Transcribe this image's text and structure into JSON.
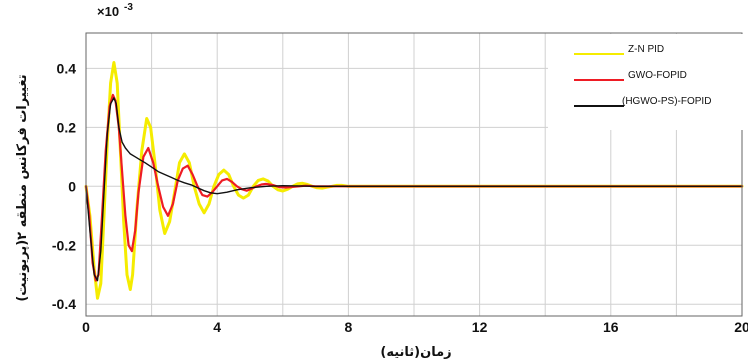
{
  "chart_data": {
    "type": "line",
    "ylabel": "تغییرات فرکانس منطقه ۲(پریونیت)",
    "xlabel": "زمان(ثانیه)",
    "y_multiplier": "×10",
    "y_exponent": "-3",
    "xlim": [
      0,
      20
    ],
    "ylim": [
      -0.44,
      0.52
    ],
    "xticks": [
      0,
      4,
      8,
      12,
      16,
      20
    ],
    "xtick_labels": [
      "0",
      "4",
      "8",
      "12",
      "16",
      "20"
    ],
    "yticks": [
      -0.4,
      -0.2,
      0,
      0.2,
      0.4
    ],
    "ytick_labels": [
      "-0.4",
      "-0.2",
      "0",
      "0.2",
      "0.4"
    ],
    "grid": true,
    "legend_position": "top-right",
    "series": [
      {
        "name": "Z-N PID",
        "color": "#f5ec00",
        "x": [
          0,
          0.12,
          0.25,
          0.35,
          0.45,
          0.55,
          0.65,
          0.75,
          0.85,
          0.95,
          1.05,
          1.15,
          1.25,
          1.35,
          1.42,
          1.55,
          1.7,
          1.85,
          1.97,
          2.1,
          2.25,
          2.4,
          2.55,
          2.7,
          2.85,
          3.0,
          3.15,
          3.3,
          3.45,
          3.6,
          3.75,
          3.9,
          4.05,
          4.2,
          4.35,
          4.5,
          4.65,
          4.8,
          4.95,
          5.1,
          5.25,
          5.4,
          5.55,
          5.7,
          5.85,
          6.0,
          6.15,
          6.3,
          6.45,
          6.6,
          6.75,
          6.9,
          7.05,
          7.2,
          7.35,
          7.5,
          7.65,
          7.8,
          8.0,
          8.5,
          20
        ],
        "y": [
          0,
          -0.1,
          -0.28,
          -0.38,
          -0.33,
          -0.1,
          0.15,
          0.35,
          0.42,
          0.35,
          0.12,
          -0.12,
          -0.3,
          -0.35,
          -0.3,
          -0.08,
          0.12,
          0.23,
          0.2,
          0.08,
          -0.08,
          -0.16,
          -0.12,
          -0.02,
          0.08,
          0.11,
          0.08,
          0.0,
          -0.06,
          -0.09,
          -0.06,
          0.0,
          0.04,
          0.055,
          0.04,
          0.0,
          -0.03,
          -0.04,
          -0.03,
          0.0,
          0.02,
          0.025,
          0.018,
          0.0,
          -0.012,
          -0.016,
          -0.01,
          0.0,
          0.008,
          0.01,
          0.006,
          0.0,
          -0.005,
          -0.006,
          -0.003,
          0.0,
          0.003,
          0.003,
          0.0,
          0.0,
          0.0
        ]
      },
      {
        "name": "GWO-FOPID",
        "color": "#ee1c24",
        "x": [
          0,
          0.1,
          0.2,
          0.3,
          0.38,
          0.48,
          0.6,
          0.72,
          0.82,
          0.9,
          1.0,
          1.1,
          1.2,
          1.3,
          1.4,
          1.5,
          1.6,
          1.75,
          1.9,
          2.05,
          2.2,
          2.35,
          2.5,
          2.65,
          2.8,
          2.95,
          3.1,
          3.25,
          3.4,
          3.55,
          3.7,
          3.85,
          4.0,
          4.15,
          4.3,
          4.45,
          4.6,
          4.75,
          4.9,
          5.05,
          5.2,
          5.35,
          5.5,
          5.7,
          5.9,
          6.1,
          6.3,
          6.5,
          6.7,
          7.0,
          7.5,
          20
        ],
        "y": [
          0,
          -0.1,
          -0.26,
          -0.32,
          -0.3,
          -0.12,
          0.12,
          0.27,
          0.31,
          0.29,
          0.2,
          0.05,
          -0.1,
          -0.2,
          -0.22,
          -0.15,
          -0.02,
          0.1,
          0.13,
          0.08,
          0.0,
          -0.07,
          -0.1,
          -0.06,
          0.02,
          0.06,
          0.07,
          0.04,
          0.0,
          -0.03,
          -0.035,
          -0.02,
          0.0,
          0.02,
          0.025,
          0.015,
          0.0,
          -0.01,
          -0.015,
          -0.008,
          0.0,
          0.006,
          0.008,
          0.004,
          -0.003,
          -0.004,
          -0.002,
          0.0,
          0.002,
          0.0,
          0.0,
          0.0
        ]
      },
      {
        "name": "(HGWO-PS)-FOPID",
        "color": "#111111",
        "x": [
          0,
          0.12,
          0.25,
          0.35,
          0.45,
          0.55,
          0.65,
          0.75,
          0.85,
          0.92,
          1.0,
          1.1,
          1.2,
          1.35,
          1.5,
          1.65,
          1.8,
          2.0,
          2.2,
          2.4,
          2.6,
          2.8,
          3.0,
          3.2,
          3.4,
          3.6,
          3.8,
          4.0,
          4.3,
          4.6,
          5.0,
          5.5,
          6.0,
          7.0,
          8.0,
          20
        ],
        "y": [
          0,
          -0.15,
          -0.3,
          -0.32,
          -0.22,
          -0.02,
          0.18,
          0.28,
          0.3,
          0.28,
          0.2,
          0.15,
          0.13,
          0.11,
          0.1,
          0.09,
          0.08,
          0.065,
          0.05,
          0.04,
          0.03,
          0.02,
          0.012,
          0.005,
          -0.005,
          -0.015,
          -0.022,
          -0.025,
          -0.02,
          -0.012,
          -0.005,
          0.0,
          0.002,
          0.0,
          0.0,
          0.0
        ]
      }
    ]
  }
}
